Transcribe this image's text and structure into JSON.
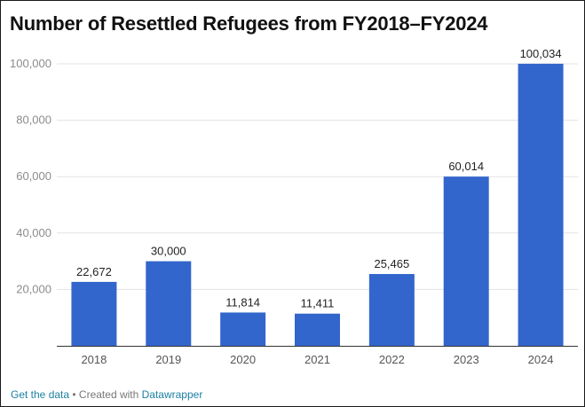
{
  "title": "Number of Resettled Refugees from FY2018–FY2024",
  "footer": {
    "get_data": "Get the data",
    "separator": " • ",
    "created_with": "Created with ",
    "tool": "Datawrapper"
  },
  "chart_data": {
    "type": "bar",
    "categories": [
      "2018",
      "2019",
      "2020",
      "2021",
      "2022",
      "2023",
      "2024"
    ],
    "values": [
      22672,
      30000,
      11814,
      11411,
      25465,
      60014,
      100034
    ],
    "value_labels": [
      "22,672",
      "30,000",
      "11,814",
      "11,411",
      "25,465",
      "60,014",
      "100,034"
    ],
    "y_ticks": [
      20000,
      40000,
      60000,
      80000,
      100000
    ],
    "y_tick_labels": [
      "20,000",
      "40,000",
      "60,000",
      "80,000",
      "100,000"
    ],
    "ylim": [
      0,
      100000
    ],
    "grid": true,
    "bar_color": "#3366cc"
  }
}
